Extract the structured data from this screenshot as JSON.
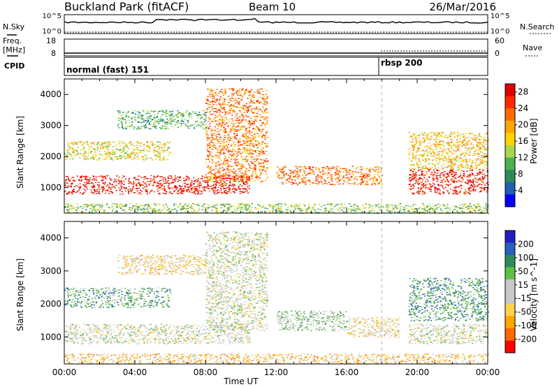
{
  "header": {
    "station": "Buckland Park (fitACF)",
    "beam": "Beam 10",
    "date": "26/Mar/2016"
  },
  "strip_labels": {
    "nsky": "N.Sky",
    "nsky_ticks": [
      "10^5",
      "10^0"
    ],
    "nsearch": "N.Search",
    "nsearch_ticks": [
      "10^5",
      "10^0"
    ],
    "freq_top": "Freq.",
    "freq_unit": "[MHz]",
    "freq_ticks": [
      "18",
      "8"
    ],
    "nave_ticks": [
      "60",
      "0"
    ],
    "nave": "Nave",
    "cpid": "CPID"
  },
  "cpid_segments": [
    {
      "label": "normal (fast) 151",
      "start": "00:00"
    },
    {
      "label": "rbsp 200",
      "start": "18:00"
    }
  ],
  "colors": {
    "power_scale": [
      "#0000ff",
      "#1f5fb4",
      "#2e8b57",
      "#4caf50",
      "#a6d84a",
      "#ffd400",
      "#ffa500",
      "#ff6a00",
      "#ff2a00",
      "#e00000"
    ],
    "velocity_scale": [
      "#ff0000",
      "#ff6a00",
      "#ffa500",
      "#ffd24a",
      "#c8c8c8",
      "#c8c8c8",
      "#60c040",
      "#2e8b57",
      "#2a5fbf",
      "#2020c0"
    ],
    "ground_scatter": "#b4b4b4"
  },
  "chart_data": [
    {
      "type": "heatmap",
      "title": "",
      "xlabel": "Time UT",
      "ylabel": "Slant Range [km]",
      "xlim": [
        "00:00",
        "00:00"
      ],
      "x_ticks": [
        "00:00",
        "04:00",
        "08:00",
        "12:00",
        "16:00",
        "20:00",
        "00:00"
      ],
      "ylim": [
        180,
        4500
      ],
      "y_ticks": [
        "1000",
        "2000",
        "3000",
        "4000"
      ],
      "colorbar": {
        "label": "Power [dB]",
        "ticks": [
          "4",
          "8",
          "12",
          "16",
          "20",
          "24",
          "28"
        ],
        "range": [
          0,
          30
        ]
      },
      "echo_regions": [
        {
          "start_ut": 0.0,
          "end_ut": 10.5,
          "range_km": [
            800,
            1400
          ],
          "value": 28
        },
        {
          "start_ut": 0.0,
          "end_ut": 6.0,
          "range_km": [
            1900,
            2500
          ],
          "value": 16
        },
        {
          "start_ut": 3.0,
          "end_ut": 8.0,
          "range_km": [
            2900,
            3500
          ],
          "value": 10
        },
        {
          "start_ut": 8.0,
          "end_ut": 11.5,
          "range_km": [
            1200,
            4200
          ],
          "value": 22
        },
        {
          "start_ut": 12.0,
          "end_ut": 18.0,
          "range_km": [
            1100,
            1700
          ],
          "value": 22
        },
        {
          "start_ut": 19.5,
          "end_ut": 24.0,
          "range_km": [
            800,
            1600
          ],
          "value": 28
        },
        {
          "start_ut": 19.5,
          "end_ut": 24.0,
          "range_km": [
            1600,
            2800
          ],
          "value": 18
        },
        {
          "start_ut": 0.0,
          "end_ut": 24.0,
          "range_km": [
            180,
            500
          ],
          "value": 12
        }
      ]
    },
    {
      "type": "heatmap",
      "title": "",
      "xlabel": "Time UT",
      "ylabel": "Slant Range [km]",
      "xlim": [
        "00:00",
        "00:00"
      ],
      "x_ticks": [
        "00:00",
        "04:00",
        "08:00",
        "12:00",
        "16:00",
        "20:00",
        "00:00"
      ],
      "ylim": [
        180,
        4500
      ],
      "y_ticks": [
        "1000",
        "2000",
        "3000",
        "4000"
      ],
      "colorbar": {
        "label": "Velocity [m s^-1]",
        "ticks": [
          "-200",
          "-100",
          "-50",
          "-15",
          "15",
          "50",
          "100",
          "200"
        ],
        "range": [
          -250,
          250
        ]
      },
      "echo_regions": [
        {
          "start_ut": 0.0,
          "end_ut": 10.5,
          "range_km": [
            800,
            1400
          ],
          "value": 0
        },
        {
          "start_ut": 0.0,
          "end_ut": 6.0,
          "range_km": [
            1900,
            2500
          ],
          "value": 80
        },
        {
          "start_ut": 3.0,
          "end_ut": 8.0,
          "range_km": [
            2900,
            3500
          ],
          "value": -60
        },
        {
          "start_ut": 8.0,
          "end_ut": 11.5,
          "range_km": [
            1200,
            4200
          ],
          "value": 0
        },
        {
          "start_ut": 12.0,
          "end_ut": 16.0,
          "range_km": [
            1200,
            1800
          ],
          "value": 40
        },
        {
          "start_ut": 16.0,
          "end_ut": 19.0,
          "range_km": [
            1000,
            1600
          ],
          "value": -40
        },
        {
          "start_ut": 19.5,
          "end_ut": 24.0,
          "range_km": [
            800,
            1400
          ],
          "value": 0
        },
        {
          "start_ut": 19.5,
          "end_ut": 24.0,
          "range_km": [
            1500,
            2800
          ],
          "value": 100
        },
        {
          "start_ut": 0.0,
          "end_ut": 24.0,
          "range_km": [
            180,
            500
          ],
          "value": -80
        }
      ]
    }
  ]
}
